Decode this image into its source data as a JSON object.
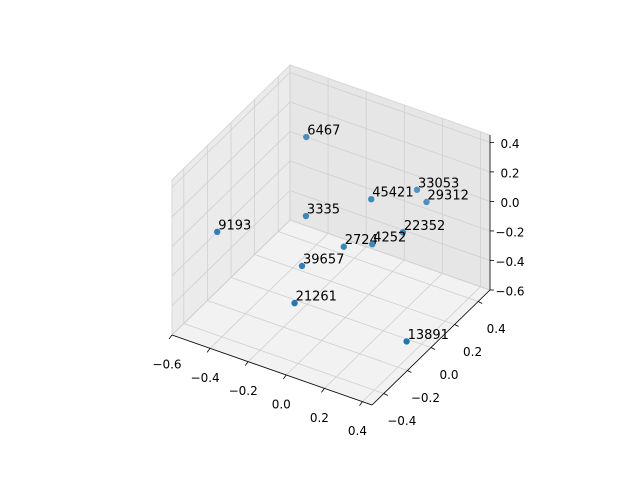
{
  "chart_data": {
    "type": "scatter3d",
    "xlim": [
      -0.6,
      0.45
    ],
    "ylim": [
      -0.5,
      0.5
    ],
    "zlim": [
      -0.6,
      0.45
    ],
    "xticks": [
      {
        "value": -0.6,
        "label": "−0.6"
      },
      {
        "value": -0.4,
        "label": "−0.4"
      },
      {
        "value": -0.2,
        "label": "−0.2"
      },
      {
        "value": 0,
        "label": "0.0"
      },
      0.2,
      0.4
    ],
    "yticks": [
      {
        "value": -0.4,
        "label": "−0.4"
      },
      {
        "value": -0.2,
        "label": "−0.2"
      },
      {
        "value": 0,
        "label": "0.0"
      },
      0.2,
      0.4
    ],
    "zticks": [
      {
        "value": -0.6,
        "label": "−0.6"
      },
      {
        "value": -0.4,
        "label": "−0.4"
      },
      {
        "value": -0.2,
        "label": "−0.2"
      },
      {
        "value": 0,
        "label": "0.0"
      },
      0.2,
      0.4
    ],
    "grid": true,
    "series": [
      {
        "color": "#1f77b4",
        "labels": [
          "6467",
          "33053",
          "29312",
          "45421",
          "3335",
          "22352",
          "9193",
          "2724",
          "4252",
          "39657",
          "21261",
          "13891"
        ],
        "x": [
          -0.31,
          0.11,
          0.16,
          0.0,
          -0.25,
          0.16,
          -0.53,
          -0.07,
          0.03,
          -0.19,
          -0.13,
          0.39
        ],
        "y": [
          0.17,
          0.43,
          0.43,
          0.22,
          0.07,
          0.23,
          -0.23,
          0.1,
          0.18,
          -0.06,
          -0.22,
          -0.11
        ],
        "z": [
          0.35,
          -0.02,
          -0.08,
          0.03,
          -0.08,
          -0.13,
          -0.08,
          -0.23,
          -0.23,
          -0.29,
          -0.39,
          -0.5
        ]
      }
    ]
  }
}
